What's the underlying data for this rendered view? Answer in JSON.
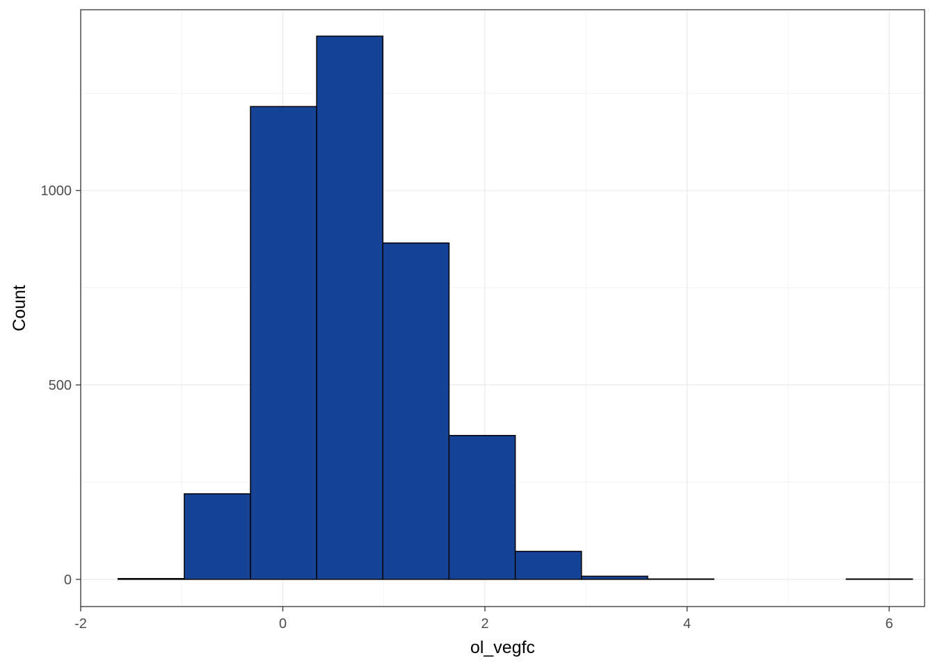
{
  "chart_data": {
    "type": "bar",
    "subtype": "histogram",
    "title": "",
    "xlabel": "ol_vegfc",
    "ylabel": "Count",
    "xlim": [
      -2,
      6.35
    ],
    "ylim": [
      -70,
      1465
    ],
    "x_ticks": [
      -2,
      0,
      2,
      4,
      6
    ],
    "x_tick_labels": [
      "-2",
      "0",
      "2",
      "4",
      "6"
    ],
    "y_ticks": [
      0,
      500,
      1000
    ],
    "y_tick_labels": [
      "0",
      "500",
      "1000"
    ],
    "grid": true,
    "legend": "none",
    "bins": [
      {
        "x0": -1.63,
        "x1": -0.975,
        "count": 2
      },
      {
        "x0": -0.975,
        "x1": -0.32,
        "count": 220
      },
      {
        "x0": -0.32,
        "x1": 0.335,
        "count": 1216
      },
      {
        "x0": 0.335,
        "x1": 0.99,
        "count": 1397
      },
      {
        "x0": 0.99,
        "x1": 1.645,
        "count": 865
      },
      {
        "x0": 1.645,
        "x1": 2.3,
        "count": 370
      },
      {
        "x0": 2.3,
        "x1": 2.955,
        "count": 72
      },
      {
        "x0": 2.955,
        "x1": 3.61,
        "count": 8
      },
      {
        "x0": 3.61,
        "x1": 4.265,
        "count": 1
      },
      {
        "x0": 4.265,
        "x1": 4.92,
        "count": 0
      },
      {
        "x0": 4.92,
        "x1": 5.575,
        "count": 0
      },
      {
        "x0": 5.575,
        "x1": 6.23,
        "count": 1
      }
    ],
    "colors": {
      "fill": "#174397",
      "outline": "#000000",
      "panel_border": "#333333",
      "grid_major": "#ebebeb",
      "grid_minor": "#f5f5f5",
      "tick_text": "#4d4d4d"
    }
  }
}
